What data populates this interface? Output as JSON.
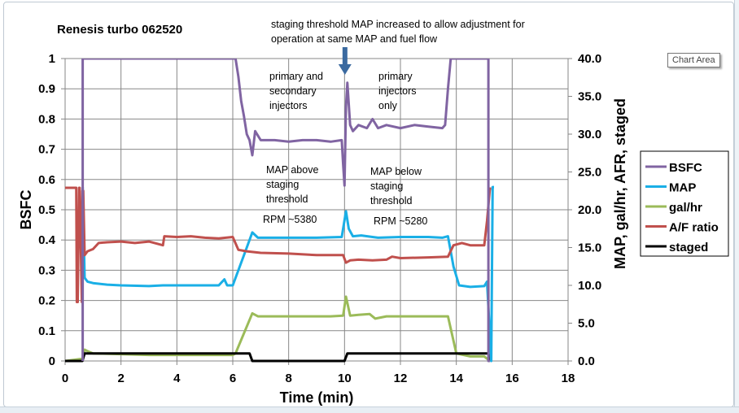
{
  "chart_data": {
    "type": "line",
    "title": "Renesis turbo 062520",
    "xlabel": "Time (min)",
    "ylabel": "BSFC",
    "ylabel_right": "MAP, gal/hr, AFR, staged",
    "xlim": [
      0,
      18
    ],
    "ylim": [
      0,
      1
    ],
    "ylim_right": [
      0,
      40
    ],
    "grid": true,
    "x_ticks": [
      "0",
      "2",
      "4",
      "6",
      "8",
      "10",
      "12",
      "14",
      "16",
      "18"
    ],
    "y_ticks_left": [
      "0",
      "0.1",
      "0.2",
      "0.3",
      "0.4",
      "0.5",
      "0.6",
      "0.7",
      "0.8",
      "0.9",
      "1"
    ],
    "y_ticks_right": [
      "0.0",
      "5.0",
      "10.0",
      "15.0",
      "20.0",
      "25.0",
      "30.0",
      "35.0",
      "40.0"
    ],
    "legend_position": "right",
    "series": [
      {
        "name": "BSFC",
        "axis": "left",
        "color": "#8064a2",
        "x": [
          0.63,
          0.63,
          0.66,
          6.1,
          6.2,
          6.3,
          6.4,
          6.5,
          6.6,
          6.7,
          6.8,
          7.0,
          7.5,
          8.0,
          8.5,
          9.0,
          9.5,
          9.9,
          9.95,
          10.0,
          10.05,
          10.1,
          10.2,
          10.3,
          10.5,
          10.8,
          11.0,
          11.2,
          11.5,
          12.0,
          12.5,
          13.0,
          13.5,
          13.6,
          13.7,
          13.8,
          15.15,
          15.15,
          15.2
        ],
        "y": [
          0,
          1.0,
          1.0,
          1.0,
          0.94,
          0.86,
          0.81,
          0.75,
          0.73,
          0.68,
          0.76,
          0.73,
          0.73,
          0.725,
          0.73,
          0.73,
          0.725,
          0.73,
          0.65,
          0.58,
          0.84,
          0.92,
          0.78,
          0.76,
          0.78,
          0.77,
          0.8,
          0.77,
          0.78,
          0.77,
          0.78,
          0.775,
          0.77,
          0.78,
          0.9,
          1.0,
          1.0,
          0.0,
          0.0
        ]
      },
      {
        "name": "MAP",
        "axis": "right",
        "color": "#1aafe6",
        "x": [
          0.63,
          0.7,
          0.8,
          1.0,
          1.5,
          2.0,
          3.0,
          3.5,
          4.0,
          5.0,
          5.5,
          5.7,
          5.8,
          6.0,
          6.2,
          6.5,
          6.7,
          6.9,
          7.2,
          8.0,
          9.0,
          9.9,
          10.05,
          10.15,
          10.3,
          10.6,
          11.0,
          11.2,
          12.0,
          13.0,
          13.5,
          13.7,
          13.9,
          14.1,
          14.5,
          15.0,
          15.1,
          15.25,
          15.3,
          15.35
        ],
        "y": [
          23.0,
          11.0,
          10.5,
          10.3,
          10.1,
          10.0,
          9.9,
          10.0,
          10.0,
          10.0,
          10.0,
          10.8,
          10.0,
          10.0,
          12.0,
          15.0,
          17.0,
          16.3,
          16.3,
          16.3,
          16.3,
          16.4,
          19.8,
          17.5,
          16.5,
          16.6,
          16.4,
          16.3,
          16.4,
          16.4,
          16.3,
          16.5,
          12.5,
          10.0,
          9.8,
          9.9,
          10.5,
          0.0,
          23.0,
          23.0
        ]
      },
      {
        "name": "gal/hr",
        "axis": "right",
        "color": "#9bbb59",
        "x": [
          0.0,
          0.63,
          0.7,
          0.8,
          1.0,
          2.0,
          3.0,
          4.0,
          5.0,
          6.0,
          6.1,
          6.7,
          6.9,
          7.5,
          8.5,
          9.5,
          9.95,
          10.05,
          10.2,
          10.5,
          10.9,
          11.1,
          11.5,
          12.5,
          13.5,
          13.7,
          14.0,
          14.5,
          15.0,
          15.2
        ],
        "y": [
          0.0,
          0.3,
          1.5,
          1.3,
          1.0,
          0.9,
          0.8,
          0.8,
          0.8,
          0.8,
          1.0,
          6.3,
          5.9,
          5.9,
          5.9,
          5.9,
          6.0,
          8.5,
          6.0,
          6.1,
          6.2,
          5.6,
          5.9,
          5.9,
          5.9,
          5.9,
          1.0,
          0.6,
          0.6,
          0.0
        ]
      },
      {
        "name": "A/F ratio",
        "axis": "right",
        "color": "#c0504d",
        "x": [
          0.0,
          0.4,
          0.42,
          0.45,
          0.5,
          0.52,
          0.6,
          0.62,
          0.65,
          0.7,
          0.8,
          1.0,
          1.2,
          1.5,
          2.0,
          2.5,
          3.0,
          3.5,
          3.55,
          4.0,
          4.5,
          5.0,
          5.5,
          6.0,
          6.2,
          6.5,
          7.0,
          8.0,
          9.0,
          9.95,
          10.05,
          10.2,
          10.5,
          11.0,
          11.5,
          11.7,
          12.0,
          13.0,
          13.7,
          13.9,
          14.2,
          14.5,
          15.0,
          15.1,
          15.2,
          15.25
        ],
        "y": [
          22.9,
          22.9,
          7.8,
          7.8,
          22.9,
          22.9,
          7.8,
          22.5,
          22.5,
          14.0,
          14.5,
          14.8,
          15.6,
          15.7,
          15.8,
          15.6,
          15.8,
          15.3,
          16.5,
          16.4,
          16.5,
          16.3,
          16.2,
          16.4,
          14.7,
          14.5,
          14.3,
          14.2,
          14.0,
          14.0,
          13.0,
          13.3,
          13.4,
          13.3,
          13.4,
          13.8,
          13.6,
          13.7,
          13.8,
          15.3,
          15.6,
          15.3,
          15.3,
          18.5,
          22.8,
          22.8
        ]
      },
      {
        "name": "staged",
        "axis": "right",
        "color": "#000000",
        "x": [
          0.0,
          0.62,
          0.7,
          6.6,
          6.7,
          10.0,
          10.1,
          15.15,
          15.25
        ],
        "y": [
          0.0,
          0.0,
          1.0,
          1.0,
          0.0,
          0.0,
          1.0,
          1.0,
          0.0
        ]
      }
    ],
    "annotations": [
      {
        "name": "staging-note",
        "lines": [
          "staging threshold MAP increased  to allow adjustment for",
          "operation at same MAP and fuel flow"
        ]
      },
      {
        "name": "primary-secondary-note",
        "lines": [
          "primary and",
          "secondary",
          "injectors"
        ]
      },
      {
        "name": "primary-only-note",
        "lines": [
          "primary",
          "injectors",
          "only"
        ]
      },
      {
        "name": "map-above-note",
        "lines": [
          "MAP above",
          "staging",
          "threshold"
        ]
      },
      {
        "name": "map-below-note",
        "lines": [
          "MAP below",
          "staging",
          "threshold"
        ]
      },
      {
        "name": "rpm-5380-note",
        "lines": [
          "RPM ~5380"
        ]
      },
      {
        "name": "rpm-5280-note",
        "lines": [
          "RPM ~5280"
        ]
      }
    ],
    "arrow_color": "#3b6aa0",
    "gridline_color": "#878787"
  },
  "ui": {
    "tooltip": "Chart Area"
  }
}
